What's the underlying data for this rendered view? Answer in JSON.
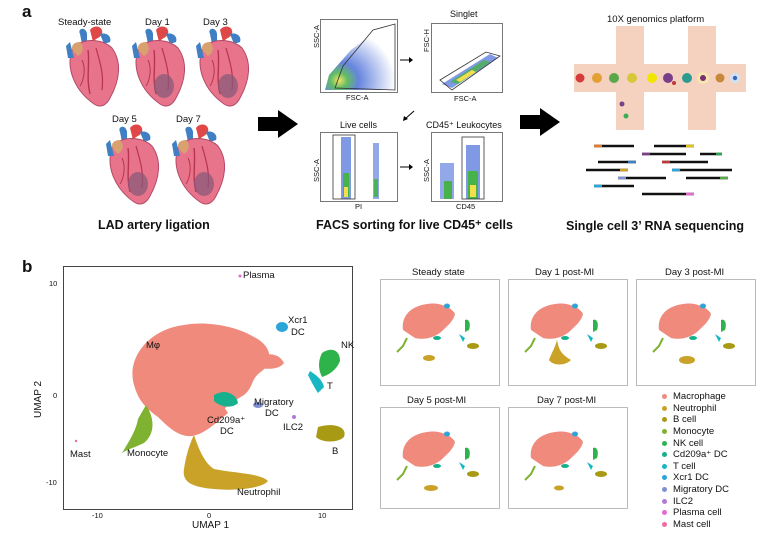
{
  "panel_a": {
    "letter": "a",
    "heart_labels": [
      "Steady-state",
      "Day 1",
      "Day 3",
      "Day 5",
      "Day 7"
    ],
    "lad_caption": "LAD artery ligation",
    "facs": {
      "plot1": {
        "xlabel": "FSC-A",
        "ylabel": "SSC-A"
      },
      "plot2": {
        "title": "Singlet",
        "xlabel": "FSC-A",
        "ylabel": "FSC-H"
      },
      "plot3": {
        "title": "Live cells",
        "xlabel": "PI",
        "ylabel": "SSC-A"
      },
      "plot4": {
        "title": "CD45⁺ Leukocytes",
        "xlabel": "CD45",
        "ylabel": "SSC-A"
      },
      "caption": "FACS sorting for live CD45⁺ cells"
    },
    "tenx_title": "10X genomics platform",
    "seq_caption": "Single cell 3’ RNA sequencing"
  },
  "panel_b": {
    "letter": "b",
    "umap": {
      "xlabel": "UMAP 1",
      "ylabel": "UMAP 2",
      "xticks": [
        "-10",
        "0",
        "10"
      ],
      "yticks": [
        "10",
        "0",
        "-10"
      ],
      "cluster_labels": [
        "Plasma",
        "Xcr1",
        "DC",
        "NK",
        "Mφ",
        "T",
        "Migratory",
        "DC",
        "Cd209a⁺",
        "DC",
        "ILC2",
        "B",
        "Mast",
        "Monocyte",
        "Neutrophil"
      ]
    },
    "small_titles": [
      "Steady state",
      "Day 1 post-MI",
      "Day 3 post-MI",
      "Day 5 post-MI",
      "Day 7 post-MI"
    ],
    "legend": [
      {
        "label": "Macrophage",
        "color": "#f08a7c"
      },
      {
        "label": "Neutrophil",
        "color": "#c9a227"
      },
      {
        "label": "B cell",
        "color": "#a89a12"
      },
      {
        "label": "Monocyte",
        "color": "#7fb230"
      },
      {
        "label": "NK cell",
        "color": "#2db34a"
      },
      {
        "label": "Cd209a⁺ DC",
        "color": "#17b08c"
      },
      {
        "label": "T cell",
        "color": "#19b7c4"
      },
      {
        "label": "Xcr1 DC",
        "color": "#2aa5d8"
      },
      {
        "label": "Migratory DC",
        "color": "#7e8fd6"
      },
      {
        "label": "ILC2",
        "color": "#b07ad8"
      },
      {
        "label": "Plasma cell",
        "color": "#e56ad0"
      },
      {
        "label": "Mast cell",
        "color": "#f06aa4"
      }
    ]
  }
}
